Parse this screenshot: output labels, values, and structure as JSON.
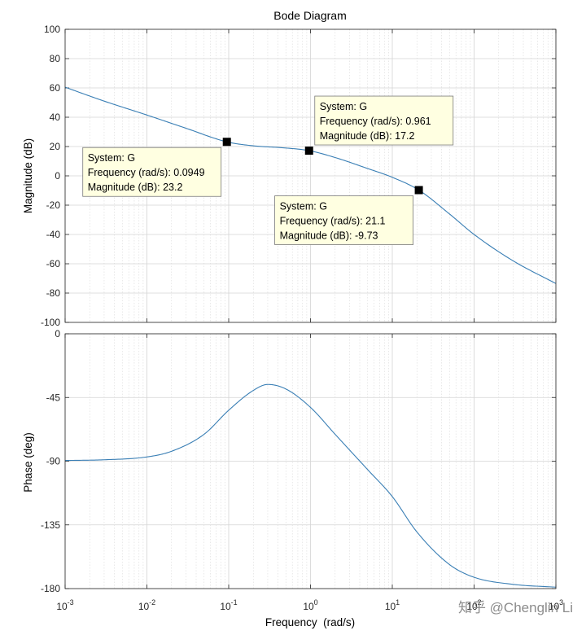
{
  "chart_data": {
    "type": "line",
    "title": "Bode Diagram",
    "system": "G",
    "xlabel": "Frequency  (rad/s)",
    "x_scale": "log",
    "xlim": [
      0.001,
      1000
    ],
    "x_ticks": [
      {
        "base": "10",
        "exp": "-3"
      },
      {
        "base": "10",
        "exp": "-2"
      },
      {
        "base": "10",
        "exp": "-1"
      },
      {
        "base": "10",
        "exp": "0"
      },
      {
        "base": "10",
        "exp": "1"
      },
      {
        "base": "10",
        "exp": "2"
      },
      {
        "base": "10",
        "exp": "3"
      }
    ],
    "grid": true,
    "series_color": "#3a7fb5",
    "magnitude": {
      "ylabel": "Magnitude (dB)",
      "ylim": [
        -100,
        100
      ],
      "y_ticks": [
        "100",
        "80",
        "60",
        "40",
        "20",
        "0",
        "-20",
        "-40",
        "-60",
        "-80",
        "-100"
      ],
      "points": [
        {
          "x": 0.001,
          "y": 60.5
        },
        {
          "x": 0.003,
          "y": 51
        },
        {
          "x": 0.01,
          "y": 41.5
        },
        {
          "x": 0.03,
          "y": 32.5
        },
        {
          "x": 0.0949,
          "y": 23.2
        },
        {
          "x": 0.2,
          "y": 20.5
        },
        {
          "x": 0.5,
          "y": 19
        },
        {
          "x": 0.961,
          "y": 17.2
        },
        {
          "x": 2,
          "y": 12.5
        },
        {
          "x": 5,
          "y": 5
        },
        {
          "x": 10,
          "y": -1
        },
        {
          "x": 21.1,
          "y": -9.73
        },
        {
          "x": 50,
          "y": -26
        },
        {
          "x": 100,
          "y": -40
        },
        {
          "x": 300,
          "y": -58
        },
        {
          "x": 1000,
          "y": -73.5
        }
      ]
    },
    "phase": {
      "ylabel": "Phase (deg)",
      "ylim": [
        -180,
        0
      ],
      "y_ticks": [
        "0",
        "-45",
        "-90",
        "-135",
        "-180"
      ],
      "points": [
        {
          "x": 0.001,
          "y": -89.5
        },
        {
          "x": 0.003,
          "y": -89
        },
        {
          "x": 0.01,
          "y": -87
        },
        {
          "x": 0.02,
          "y": -83
        },
        {
          "x": 0.05,
          "y": -71
        },
        {
          "x": 0.1,
          "y": -54
        },
        {
          "x": 0.2,
          "y": -40
        },
        {
          "x": 0.3,
          "y": -35.8
        },
        {
          "x": 0.5,
          "y": -39
        },
        {
          "x": 1,
          "y": -52
        },
        {
          "x": 2,
          "y": -71
        },
        {
          "x": 5,
          "y": -96
        },
        {
          "x": 10,
          "y": -115
        },
        {
          "x": 20,
          "y": -140
        },
        {
          "x": 50,
          "y": -163
        },
        {
          "x": 100,
          "y": -172
        },
        {
          "x": 300,
          "y": -177
        },
        {
          "x": 1000,
          "y": -179
        }
      ]
    },
    "datatips": [
      {
        "marker_x": 0.0949,
        "marker_y": 23.2,
        "box_anchor": "below-left",
        "system": "System: G",
        "frequency": "Frequency (rad/s): 0.0949",
        "magnitude": "Magnitude (dB): 23.2"
      },
      {
        "marker_x": 0.961,
        "marker_y": 17.2,
        "box_anchor": "above-right",
        "system": "System: G",
        "frequency": "Frequency (rad/s): 0.961",
        "magnitude": "Magnitude (dB): 17.2"
      },
      {
        "marker_x": 21.1,
        "marker_y": -9.73,
        "box_anchor": "below-left",
        "system": "System: G",
        "frequency": "Frequency (rad/s): 21.1",
        "magnitude": "Magnitude (dB): -9.73"
      }
    ]
  },
  "watermark": "知乎 @Chenglin Li"
}
